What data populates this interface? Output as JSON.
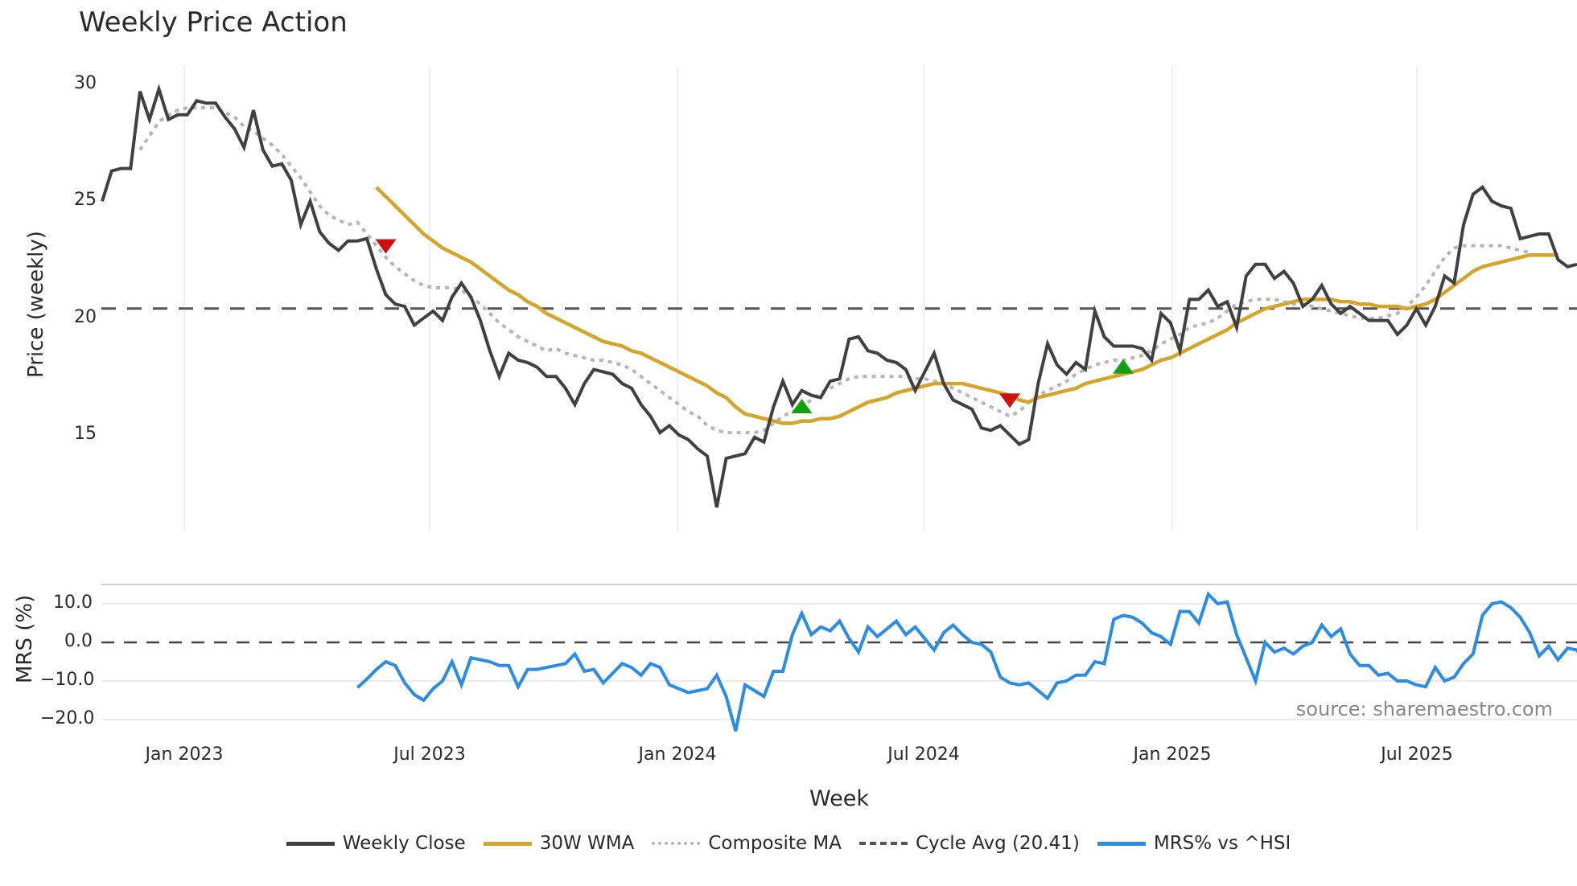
{
  "title": "Weekly Price Action",
  "price_axis": {
    "label": "Price (weekly)",
    "ticks": [
      "30",
      "25",
      "20",
      "15"
    ]
  },
  "mrs_axis": {
    "label": "MRS (%)",
    "ticks": [
      "10.0",
      "0.0",
      "−10.0",
      "−20.0"
    ]
  },
  "x_axis": {
    "label": "Week",
    "ticks": [
      "Jan 2023",
      "Jul 2023",
      "Jan 2024",
      "Jul 2024",
      "Jan 2025",
      "Jul 2025"
    ]
  },
  "source": "source: sharemaestro.com",
  "legend": [
    {
      "label": "Weekly Close",
      "color": "#404040",
      "style": "solid"
    },
    {
      "label": "30W WMA",
      "color": "#d4a52a",
      "style": "solid"
    },
    {
      "label": "Composite MA",
      "color": "#b5b5b5",
      "style": "dotted"
    },
    {
      "label": "Cycle Avg (20.41)",
      "color": "#555555",
      "style": "dashed"
    },
    {
      "label": "MRS% vs ^HSI",
      "color": "#2b8ce6",
      "style": "solid"
    }
  ],
  "chart_data": [
    {
      "type": "line",
      "title": "Weekly Price Action",
      "xlabel": "Week",
      "ylabel": "Price (weekly)",
      "ylim": [
        10.8,
        31.2
      ],
      "yticks": [
        15,
        20,
        25,
        30
      ],
      "x_tick_labels": [
        "Jan 2023",
        "Jul 2023",
        "Jan 2024",
        "Jul 2024",
        "Jan 2025",
        "Jul 2025"
      ],
      "grid": "vertical",
      "x_range": [
        "2022-11",
        "2025-10"
      ],
      "series": [
        {
          "name": "Weekly Close",
          "color": "#404040",
          "values": [
            25.0,
            26.3,
            26.4,
            26.4,
            29.7,
            28.5,
            29.8,
            28.5,
            28.7,
            28.7,
            29.3,
            29.2,
            29.2,
            28.6,
            28.1,
            27.3,
            28.9,
            27.2,
            26.5,
            26.6,
            25.9,
            24.0,
            25.0,
            23.7,
            23.2,
            22.9,
            23.3,
            23.3,
            23.4,
            22.1,
            21.0,
            20.6,
            20.5,
            19.7,
            20.0,
            20.3,
            19.9,
            20.9,
            21.5,
            20.9,
            19.9,
            18.6,
            17.5,
            18.5,
            18.2,
            18.1,
            17.9,
            17.5,
            17.5,
            17.0,
            16.3,
            17.2,
            17.8,
            17.7,
            17.6,
            17.2,
            17.0,
            16.3,
            15.8,
            15.1,
            15.4,
            15.0,
            14.8,
            14.4,
            14.1,
            11.9,
            14.0,
            14.1,
            14.2,
            14.9,
            14.7,
            16.2,
            17.3,
            16.3,
            16.9,
            16.7,
            16.6,
            17.3,
            17.4,
            19.1,
            19.2,
            18.6,
            18.5,
            18.2,
            18.1,
            17.8,
            16.9,
            17.7,
            18.5,
            17.2,
            16.5,
            16.3,
            16.1,
            15.3,
            15.2,
            15.4,
            15.0,
            14.6,
            14.8,
            17.2,
            18.9,
            18.0,
            17.6,
            18.1,
            17.8,
            20.3,
            19.2,
            18.8,
            18.8,
            18.8,
            18.7,
            18.2,
            20.2,
            19.8,
            18.6,
            20.8,
            20.8,
            21.2,
            20.5,
            20.7,
            19.6,
            21.8,
            22.3,
            22.3,
            21.7,
            22.0,
            21.5,
            20.5,
            20.8,
            21.4,
            20.6,
            20.2,
            20.5,
            20.2,
            19.9,
            19.9,
            19.9,
            19.3,
            19.7,
            20.4,
            19.7,
            20.5,
            21.8,
            21.5,
            24.0,
            25.3,
            25.6,
            25.0,
            24.8,
            24.7,
            23.4,
            23.5,
            23.6,
            23.6,
            22.5,
            22.2,
            22.3
          ]
        },
        {
          "name": "30W WMA",
          "color": "#d4a52a",
          "values": [
            null,
            null,
            null,
            null,
            null,
            null,
            null,
            null,
            null,
            null,
            null,
            null,
            null,
            null,
            null,
            null,
            null,
            null,
            null,
            null,
            null,
            null,
            null,
            null,
            null,
            null,
            null,
            null,
            null,
            25.6,
            25.2,
            24.8,
            24.4,
            24.0,
            23.6,
            23.3,
            23.0,
            22.8,
            22.6,
            22.4,
            22.1,
            21.8,
            21.5,
            21.2,
            21.0,
            20.7,
            20.5,
            20.2,
            20.0,
            19.8,
            19.6,
            19.4,
            19.2,
            19.0,
            18.9,
            18.8,
            18.6,
            18.5,
            18.3,
            18.1,
            17.9,
            17.7,
            17.5,
            17.3,
            17.1,
            16.8,
            16.6,
            16.2,
            15.9,
            15.8,
            15.7,
            15.6,
            15.5,
            15.5,
            15.6,
            15.6,
            15.7,
            15.7,
            15.8,
            16.0,
            16.2,
            16.4,
            16.5,
            16.6,
            16.8,
            16.9,
            17.0,
            17.1,
            17.2,
            17.2,
            17.2,
            17.2,
            17.1,
            17.0,
            16.9,
            16.8,
            16.7,
            16.5,
            16.4,
            16.6,
            16.7,
            16.8,
            16.9,
            17.0,
            17.2,
            17.3,
            17.4,
            17.5,
            17.6,
            17.7,
            17.8,
            18.0,
            18.2,
            18.3,
            18.5,
            18.7,
            18.9,
            19.1,
            19.3,
            19.5,
            19.8,
            20.0,
            20.2,
            20.4,
            20.5,
            20.6,
            20.7,
            20.8,
            20.8,
            20.8,
            20.8,
            20.7,
            20.7,
            20.6,
            20.6,
            20.5,
            20.5,
            20.5,
            20.4,
            20.5,
            20.6,
            20.8,
            21.1,
            21.4,
            21.7,
            22.0,
            22.2,
            22.3,
            22.4,
            22.5,
            22.6,
            22.7,
            22.7,
            22.7,
            22.7
          ]
        },
        {
          "name": "Composite MA",
          "color": "#b5b5b5",
          "values": [
            null,
            null,
            null,
            null,
            27.2,
            27.8,
            28.4,
            28.7,
            28.9,
            29.0,
            29.0,
            29.0,
            29.0,
            28.8,
            28.6,
            28.2,
            28.0,
            27.7,
            27.4,
            27.0,
            26.5,
            26.0,
            25.4,
            24.8,
            24.4,
            24.2,
            24.0,
            24.1,
            23.6,
            23.1,
            22.6,
            22.2,
            21.9,
            21.6,
            21.4,
            21.3,
            21.3,
            21.3,
            21.2,
            20.9,
            20.6,
            20.2,
            19.8,
            19.5,
            19.2,
            19.0,
            18.8,
            18.6,
            18.7,
            18.5,
            18.4,
            18.3,
            18.2,
            18.2,
            18.1,
            18.0,
            17.8,
            17.5,
            17.2,
            16.9,
            16.6,
            16.3,
            16.0,
            15.8,
            15.4,
            15.2,
            15.1,
            15.1,
            15.1,
            15.1,
            15.2,
            15.5,
            15.8,
            16.0,
            16.2,
            16.5,
            16.8,
            17.0,
            17.2,
            17.4,
            17.5,
            17.5,
            17.5,
            17.5,
            17.5,
            17.5,
            17.4,
            17.4,
            17.3,
            17.2,
            17.0,
            16.8,
            16.6,
            16.4,
            16.2,
            16.0,
            15.8,
            16.0,
            16.4,
            16.7,
            16.9,
            17.1,
            17.3,
            17.6,
            17.8,
            18.0,
            18.1,
            18.2,
            18.2,
            18.3,
            18.4,
            18.6,
            18.9,
            19.1,
            19.3,
            19.6,
            19.7,
            19.8,
            20.0,
            20.3,
            20.6,
            20.7,
            20.8,
            20.8,
            20.8,
            20.7,
            20.6,
            20.6,
            20.5,
            20.4,
            20.3,
            20.2,
            20.1,
            20.0,
            20.0,
            20.0,
            20.1,
            20.2,
            20.5,
            20.9,
            21.4,
            22.0,
            22.6,
            23.0,
            23.1,
            23.1,
            23.1,
            23.1,
            23.1,
            23.0,
            22.9,
            22.8
          ]
        },
        {
          "name": "Cycle Avg (20.41)",
          "color": "#555555",
          "constant": 20.41
        }
      ],
      "markers": [
        {
          "type": "sell",
          "symbol": "triangle-down",
          "color": "#cc1111",
          "week_index": 30,
          "value": 23.1
        },
        {
          "type": "buy",
          "symbol": "triangle-up",
          "color": "#11a011",
          "week_index": 74,
          "value": 16.2
        },
        {
          "type": "sell",
          "symbol": "triangle-down",
          "color": "#cc1111",
          "week_index": 96,
          "value": 16.5
        },
        {
          "type": "buy",
          "symbol": "triangle-up",
          "color": "#11a011",
          "week_index": 108,
          "value": 17.9
        }
      ]
    },
    {
      "type": "line",
      "title": "",
      "xlabel": "Week",
      "ylabel": "MRS (%)",
      "ylim": [
        -24.5,
        15.5
      ],
      "yticks": [
        10.0,
        0.0,
        -10.0,
        -20.0
      ],
      "reference_line": 0.0,
      "series": [
        {
          "name": "MRS% vs ^HSI",
          "color": "#2b8ce6",
          "start_index": 27,
          "values": [
            -11.7,
            -9.5,
            -7.0,
            -5.0,
            -6.0,
            -10.5,
            -13.5,
            -15.0,
            -12.0,
            -10.0,
            -5.0,
            -11.0,
            -4.0,
            -4.5,
            -5.0,
            -6.0,
            -6.0,
            -11.5,
            -7.0,
            -7.0,
            -6.5,
            -6.0,
            -5.5,
            -3.0,
            -7.5,
            -7.0,
            -10.5,
            -8.0,
            -5.5,
            -6.5,
            -8.5,
            -5.5,
            -6.5,
            -11.0,
            -12.0,
            -13.0,
            -12.5,
            -12.0,
            -8.5,
            -14.0,
            -23.0,
            -11.0,
            -12.5,
            -14.0,
            -7.5,
            -7.5,
            2.0,
            7.5,
            2.0,
            4.0,
            3.0,
            5.5,
            1.0,
            -2.5,
            4.0,
            1.5,
            3.5,
            5.5,
            2.0,
            4.0,
            1.0,
            -2.0,
            2.5,
            4.5,
            2.0,
            0.0,
            -0.5,
            -2.5,
            -9.0,
            -10.5,
            -11.0,
            -10.5,
            -12.5,
            -14.5,
            -10.5,
            -10.0,
            -8.5,
            -8.5,
            -5.0,
            -5.5,
            6.0,
            7.0,
            6.5,
            5.0,
            2.5,
            1.5,
            -0.5,
            8.0,
            8.0,
            5.0,
            12.5,
            10.0,
            10.5,
            2.0,
            -4.0,
            -10.0,
            0.0,
            -2.5,
            -1.5,
            -3.0,
            -1.0,
            0.0,
            4.5,
            1.5,
            3.5,
            -3.0,
            -6.0,
            -6.0,
            -8.5,
            -8.0,
            -10.0,
            -10.0,
            -11.0,
            -11.5,
            -6.5,
            -10.0,
            -9.0,
            -5.5,
            -3.0,
            7.0,
            10.0,
            10.5,
            9.0,
            6.5,
            2.5,
            -3.5,
            -1.0,
            -4.5,
            -1.5,
            -2.0,
            -6.5,
            -7.0
          ]
        }
      ],
      "annotation": "source: sharemaestro.com"
    }
  ]
}
